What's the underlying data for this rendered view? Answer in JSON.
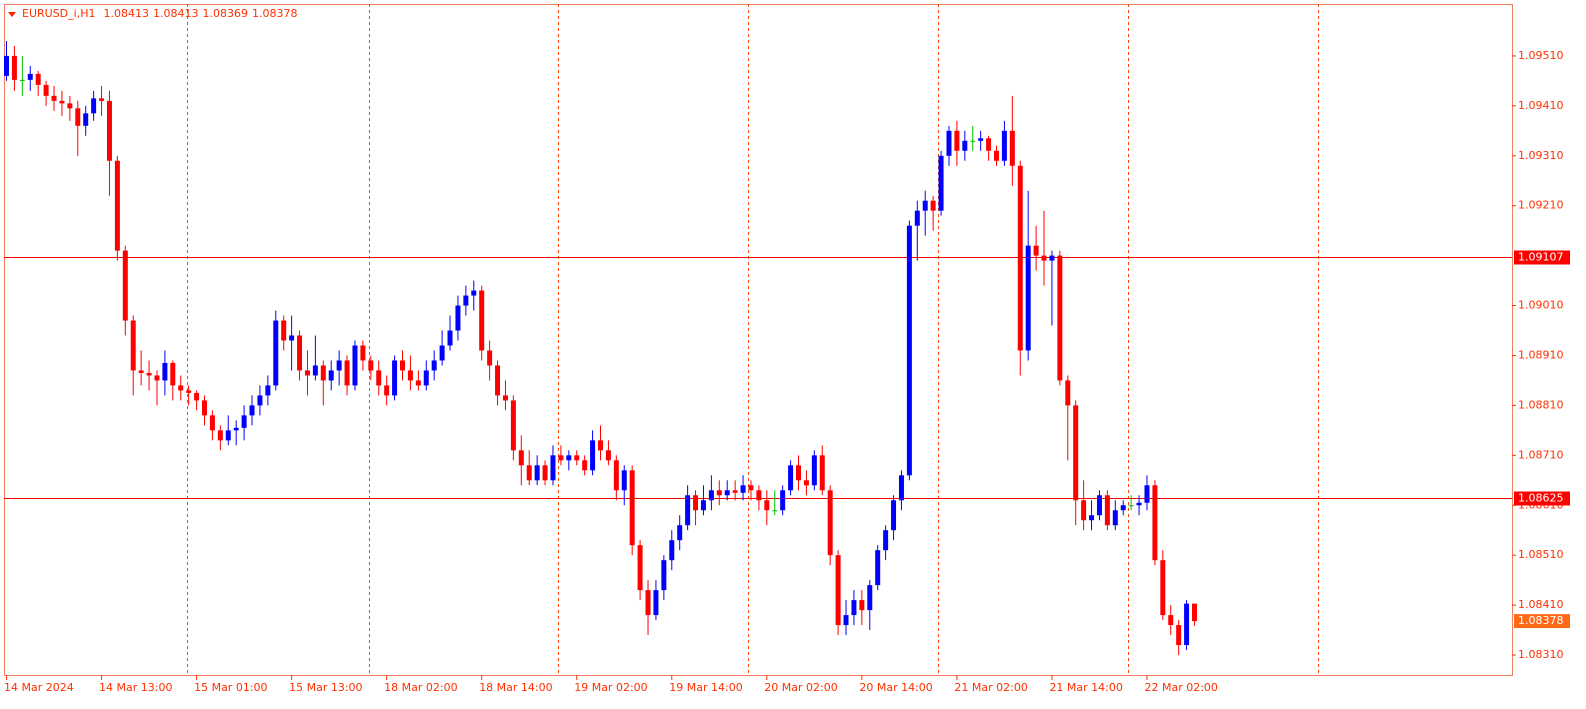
{
  "chart_data": {
    "type": "candlestick",
    "title": "EURUSD_i,H1",
    "up_color": "#0000ff",
    "down_color": "#ff0000",
    "doji_color": "#00c000",
    "axis_color": "#ff3000",
    "current_color": "#ff6a1a",
    "ylim": [
      1.0827,
      1.09614
    ],
    "yticks": [
      {
        "value": 1.0831,
        "label": "1.08310"
      },
      {
        "value": 1.0841,
        "label": "1.08410"
      },
      {
        "value": 1.0851,
        "label": "1.08510"
      },
      {
        "value": 1.0861,
        "label": "1.08610"
      },
      {
        "value": 1.0871,
        "label": "1.08710"
      },
      {
        "value": 1.0881,
        "label": "1.08810"
      },
      {
        "value": 1.0891,
        "label": "1.08910"
      },
      {
        "value": 1.0901,
        "label": "1.09010"
      },
      {
        "value": 1.0921,
        "label": "1.09210"
      },
      {
        "value": 1.0931,
        "label": "1.09310"
      },
      {
        "value": 1.0941,
        "label": "1.09410"
      },
      {
        "value": 1.0951,
        "label": "1.09510"
      }
    ],
    "hlines": [
      {
        "value": 1.09107,
        "color": "#ff0000"
      },
      {
        "value": 1.08625,
        "color": "#ff0000"
      }
    ],
    "categories": [
      "14 Mar 2024",
      null,
      null,
      null,
      null,
      null,
      null,
      null,
      null,
      null,
      null,
      null,
      "14 Mar 13:00",
      null,
      null,
      null,
      null,
      null,
      null,
      null,
      null,
      null,
      null,
      null,
      "15 Mar 01:00",
      null,
      null,
      null,
      null,
      null,
      null,
      null,
      null,
      null,
      null,
      null,
      "15 Mar 13:00",
      null,
      null,
      null,
      null,
      null,
      null,
      null,
      null,
      null,
      null,
      null,
      "18 Mar 02:00",
      null,
      null,
      null,
      null,
      null,
      null,
      null,
      null,
      null,
      null,
      null,
      "18 Mar 14:00",
      null,
      null,
      null,
      null,
      null,
      null,
      null,
      null,
      null,
      null,
      null,
      "19 Mar 02:00",
      null,
      null,
      null,
      null,
      null,
      null,
      null,
      null,
      null,
      null,
      null,
      "19 Mar 14:00",
      null,
      null,
      null,
      null,
      null,
      null,
      null,
      null,
      null,
      null,
      null,
      "20 Mar 02:00",
      null,
      null,
      null,
      null,
      null,
      null,
      null,
      null,
      null,
      null,
      null,
      "20 Mar 14:00",
      null,
      null,
      null,
      null,
      null,
      null,
      null,
      null,
      null,
      null,
      null,
      "21 Mar 02:00",
      null,
      null,
      null,
      null,
      null,
      null,
      null,
      null,
      null,
      null,
      null,
      "21 Mar 14:00",
      null,
      null,
      null,
      null,
      null,
      null,
      null,
      null,
      null,
      null,
      null,
      "22 Mar 02:00",
      null,
      null,
      null,
      null,
      null,
      null
    ],
    "ohlc": [
      [
        1.0947,
        1.0954,
        1.0946,
        1.0951
      ],
      [
        1.0951,
        1.0953,
        1.0944,
        1.09462
      ],
      [
        1.09462,
        1.0951,
        1.0943,
        1.09462
      ],
      [
        1.09462,
        1.0949,
        1.0944,
        1.09474
      ],
      [
        1.09474,
        1.0948,
        1.0943,
        1.09452
      ],
      [
        1.09452,
        1.0946,
        1.0941,
        1.0943
      ],
      [
        1.0943,
        1.0945,
        1.094,
        1.0942
      ],
      [
        1.0942,
        1.0944,
        1.0939,
        1.09415
      ],
      [
        1.09415,
        1.0943,
        1.0938,
        1.09405
      ],
      [
        1.09405,
        1.0942,
        1.0931,
        1.0937
      ],
      [
        1.0937,
        1.0941,
        1.0935,
        1.09395
      ],
      [
        1.09395,
        1.0944,
        1.0938,
        1.09425
      ],
      [
        1.09425,
        1.0945,
        1.0939,
        1.0942
      ],
      [
        1.0942,
        1.0944,
        1.0923,
        1.093
      ],
      [
        1.093,
        1.0931,
        1.091,
        1.0912
      ],
      [
        1.0912,
        1.0913,
        1.0895,
        1.0898
      ],
      [
        1.0898,
        1.0899,
        1.0883,
        1.0888
      ],
      [
        1.0888,
        1.0892,
        1.0885,
        1.08875
      ],
      [
        1.08875,
        1.089,
        1.0884,
        1.0887
      ],
      [
        1.0887,
        1.0888,
        1.0881,
        1.0886
      ],
      [
        1.0886,
        1.0892,
        1.0883,
        1.08895
      ],
      [
        1.08895,
        1.089,
        1.0882,
        1.0885
      ],
      [
        1.0885,
        1.0887,
        1.0882,
        1.0884
      ],
      [
        1.0884,
        1.0885,
        1.0881,
        1.08835
      ],
      [
        1.08835,
        1.0884,
        1.088,
        1.0882
      ],
      [
        1.0882,
        1.0883,
        1.0877,
        1.0879
      ],
      [
        1.0879,
        1.088,
        1.0874,
        1.0876
      ],
      [
        1.0876,
        1.0877,
        1.0872,
        1.0874
      ],
      [
        1.0874,
        1.0879,
        1.0873,
        1.0876
      ],
      [
        1.0876,
        1.0878,
        1.0873,
        1.08765
      ],
      [
        1.08765,
        1.0881,
        1.0874,
        1.0879
      ],
      [
        1.0879,
        1.0883,
        1.0877,
        1.0881
      ],
      [
        1.0881,
        1.0885,
        1.0879,
        1.0883
      ],
      [
        1.0883,
        1.0887,
        1.0881,
        1.0885
      ],
      [
        1.0885,
        1.09,
        1.0884,
        1.0898
      ],
      [
        1.0898,
        1.0899,
        1.0892,
        1.0894
      ],
      [
        1.0894,
        1.0899,
        1.0888,
        1.0895
      ],
      [
        1.0895,
        1.0896,
        1.0886,
        1.0888
      ],
      [
        1.0888,
        1.0892,
        1.0883,
        1.0887
      ],
      [
        1.0887,
        1.0895,
        1.0886,
        1.0889
      ],
      [
        1.0889,
        1.089,
        1.0881,
        1.0886
      ],
      [
        1.0886,
        1.089,
        1.0884,
        1.0888
      ],
      [
        1.0888,
        1.0892,
        1.0885,
        1.089
      ],
      [
        1.089,
        1.0891,
        1.0883,
        1.0885
      ],
      [
        1.0885,
        1.0894,
        1.0884,
        1.0893
      ],
      [
        1.0893,
        1.0894,
        1.0888,
        1.089
      ],
      [
        1.089,
        1.0891,
        1.0886,
        1.0888
      ],
      [
        1.0888,
        1.089,
        1.0883,
        1.0885
      ],
      [
        1.0885,
        1.0887,
        1.0881,
        1.0883
      ],
      [
        1.0883,
        1.0891,
        1.0882,
        1.089
      ],
      [
        1.089,
        1.0892,
        1.0886,
        1.0888
      ],
      [
        1.0888,
        1.0891,
        1.0884,
        1.0886
      ],
      [
        1.0886,
        1.0888,
        1.0884,
        1.0885
      ],
      [
        1.0885,
        1.089,
        1.0884,
        1.0888
      ],
      [
        1.0888,
        1.0892,
        1.0886,
        1.089
      ],
      [
        1.089,
        1.0896,
        1.0889,
        1.0893
      ],
      [
        1.0893,
        1.0899,
        1.0892,
        1.0896
      ],
      [
        1.0896,
        1.0903,
        1.0894,
        1.0901
      ],
      [
        1.0901,
        1.0905,
        1.0899,
        1.0903
      ],
      [
        1.0903,
        1.0906,
        1.09,
        1.0904
      ],
      [
        1.0904,
        1.0905,
        1.089,
        1.0892
      ],
      [
        1.0892,
        1.0894,
        1.0886,
        1.0889
      ],
      [
        1.0889,
        1.089,
        1.0881,
        1.0883
      ],
      [
        1.0883,
        1.0886,
        1.088,
        1.0882
      ],
      [
        1.0882,
        1.0883,
        1.087,
        1.0872
      ],
      [
        1.0872,
        1.0875,
        1.0865,
        1.0869
      ],
      [
        1.0869,
        1.0872,
        1.0865,
        1.0866
      ],
      [
        1.0866,
        1.0871,
        1.0865,
        1.0869
      ],
      [
        1.0869,
        1.087,
        1.0865,
        1.0866
      ],
      [
        1.0866,
        1.0873,
        1.0865,
        1.0871
      ],
      [
        1.0871,
        1.0873,
        1.0869,
        1.087
      ],
      [
        1.087,
        1.0872,
        1.0868,
        1.0871
      ],
      [
        1.0871,
        1.0872,
        1.0869,
        1.087
      ],
      [
        1.087,
        1.0871,
        1.0867,
        1.0868
      ],
      [
        1.0868,
        1.0876,
        1.0867,
        1.0874
      ],
      [
        1.0874,
        1.0877,
        1.087,
        1.0872
      ],
      [
        1.0872,
        1.0874,
        1.0869,
        1.087
      ],
      [
        1.087,
        1.0871,
        1.0862,
        1.0864
      ],
      [
        1.0864,
        1.0869,
        1.0861,
        1.0868
      ],
      [
        1.0868,
        1.0869,
        1.0851,
        1.0853
      ],
      [
        1.0853,
        1.0854,
        1.0842,
        1.0844
      ],
      [
        1.0844,
        1.0846,
        1.0835,
        1.0839
      ],
      [
        1.0839,
        1.0846,
        1.0838,
        1.0844
      ],
      [
        1.0844,
        1.0851,
        1.0842,
        1.085
      ],
      [
        1.085,
        1.0856,
        1.0848,
        1.0854
      ],
      [
        1.0854,
        1.0859,
        1.0852,
        1.0857
      ],
      [
        1.0857,
        1.0865,
        1.0856,
        1.0863
      ],
      [
        1.0863,
        1.0864,
        1.0857,
        1.086
      ],
      [
        1.086,
        1.0865,
        1.0859,
        1.0862
      ],
      [
        1.0862,
        1.0867,
        1.086,
        1.0864
      ],
      [
        1.0864,
        1.0866,
        1.0861,
        1.0863
      ],
      [
        1.0863,
        1.0866,
        1.0862,
        1.0864
      ],
      [
        1.0864,
        1.0866,
        1.0862,
        1.08635
      ],
      [
        1.08635,
        1.0867,
        1.0862,
        1.0865
      ],
      [
        1.0865,
        1.0866,
        1.0862,
        1.0864
      ],
      [
        1.0864,
        1.0865,
        1.086,
        1.0862
      ],
      [
        1.0862,
        1.0864,
        1.0857,
        1.086
      ],
      [
        1.086,
        1.0864,
        1.0859,
        1.086
      ],
      [
        1.086,
        1.0865,
        1.0859,
        1.0864
      ],
      [
        1.0864,
        1.087,
        1.0863,
        1.0869
      ],
      [
        1.0869,
        1.0871,
        1.0864,
        1.0866
      ],
      [
        1.0866,
        1.0868,
        1.0863,
        1.0865
      ],
      [
        1.0865,
        1.0872,
        1.0864,
        1.0871
      ],
      [
        1.0871,
        1.0873,
        1.0863,
        1.0864
      ],
      [
        1.0864,
        1.0865,
        1.0849,
        1.0851
      ],
      [
        1.0851,
        1.0852,
        1.0835,
        1.0837
      ],
      [
        1.0837,
        1.0842,
        1.0835,
        1.0839
      ],
      [
        1.0839,
        1.0844,
        1.0837,
        1.0842
      ],
      [
        1.0842,
        1.0844,
        1.0837,
        1.084
      ],
      [
        1.084,
        1.0846,
        1.0836,
        1.0845
      ],
      [
        1.0845,
        1.0853,
        1.0844,
        1.0852
      ],
      [
        1.0852,
        1.0857,
        1.085,
        1.0856
      ],
      [
        1.0856,
        1.0863,
        1.0854,
        1.0862
      ],
      [
        1.0862,
        1.0868,
        1.086,
        1.0867
      ],
      [
        1.0867,
        1.0918,
        1.0866,
        1.0917
      ],
      [
        1.0917,
        1.0922,
        1.091,
        1.092
      ],
      [
        1.092,
        1.0924,
        1.0915,
        1.0922
      ],
      [
        1.0922,
        1.0923,
        1.0916,
        1.092
      ],
      [
        1.092,
        1.0932,
        1.0919,
        1.0931
      ],
      [
        1.0931,
        1.0937,
        1.0929,
        1.0936
      ],
      [
        1.0936,
        1.0938,
        1.0929,
        1.0932
      ],
      [
        1.0932,
        1.0936,
        1.093,
        1.0934
      ],
      [
        1.0934,
        1.0937,
        1.0932,
        1.0934
      ],
      [
        1.0934,
        1.0936,
        1.0932,
        1.09345
      ],
      [
        1.09345,
        1.0935,
        1.093,
        1.0932
      ],
      [
        1.0932,
        1.0933,
        1.0929,
        1.093
      ],
      [
        1.093,
        1.0938,
        1.0929,
        1.0936
      ],
      [
        1.0936,
        1.0943,
        1.0925,
        1.0929
      ],
      [
        1.0929,
        1.093,
        1.0887,
        1.0892
      ],
      [
        1.0892,
        1.0924,
        1.089,
        1.0913
      ],
      [
        1.0913,
        1.0917,
        1.0908,
        1.0911
      ],
      [
        1.0911,
        1.092,
        1.0905,
        1.091
      ],
      [
        1.091,
        1.0912,
        1.0897,
        1.0911
      ],
      [
        1.0911,
        1.0912,
        1.0885,
        1.0886
      ],
      [
        1.0886,
        1.0887,
        1.087,
        1.0881
      ],
      [
        1.0881,
        1.0882,
        1.0857,
        1.0862
      ],
      [
        1.0862,
        1.0866,
        1.0856,
        1.0858
      ],
      [
        1.0858,
        1.0862,
        1.0856,
        1.0859
      ],
      [
        1.0859,
        1.0864,
        1.0858,
        1.0863
      ],
      [
        1.0863,
        1.0864,
        1.0856,
        1.0857
      ],
      [
        1.0857,
        1.0862,
        1.0856,
        1.086
      ],
      [
        1.086,
        1.0862,
        1.0859,
        1.0861
      ],
      [
        1.0861,
        1.0863,
        1.086,
        1.0861
      ],
      [
        1.0861,
        1.0863,
        1.0859,
        1.08615
      ],
      [
        1.08615,
        1.0867,
        1.086,
        1.0865
      ],
      [
        1.0865,
        1.0866,
        1.0849,
        1.085
      ],
      [
        1.085,
        1.0852,
        1.0838,
        1.0839
      ],
      [
        1.0839,
        1.0841,
        1.0835,
        1.0837
      ],
      [
        1.0837,
        1.0838,
        1.0831,
        1.0833
      ],
      [
        1.0833,
        1.0842,
        1.0832,
        1.08413
      ],
      [
        1.08413,
        1.08413,
        1.08369,
        1.08378
      ]
    ]
  }
}
